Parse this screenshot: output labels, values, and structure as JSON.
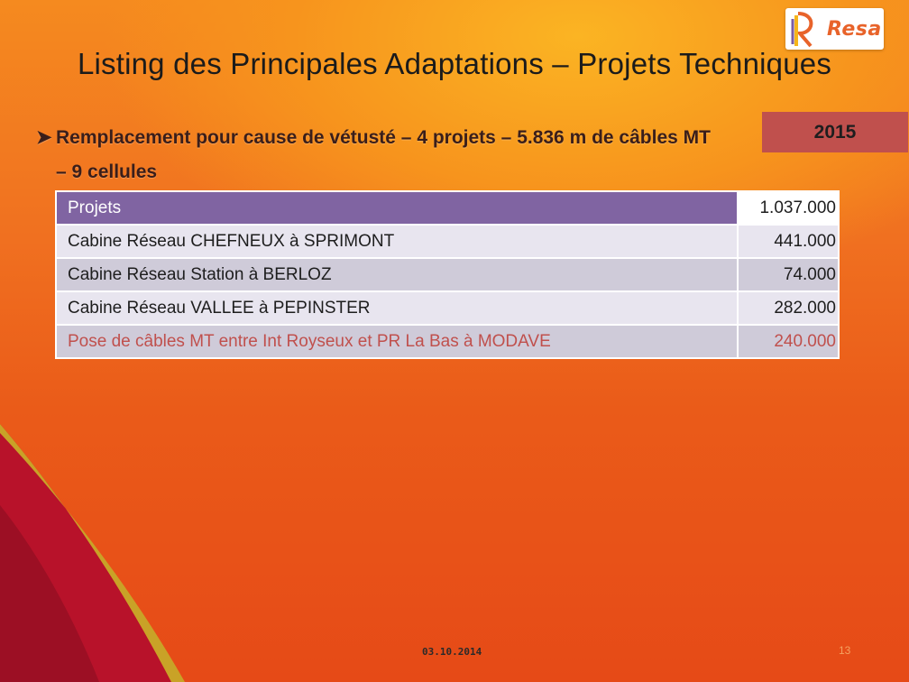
{
  "logo": {
    "text": "Resa"
  },
  "title": "Listing des Principales Adaptations – Projets Techniques",
  "bullet": {
    "line1": "Remplacement pour cause de vétusté – 4 projets – 5.836 m de câbles MT",
    "line2": "– 9 cellules"
  },
  "year_badge": "2015",
  "table": {
    "header": {
      "label": "Projets",
      "amount": "1.037.000"
    },
    "rows": [
      {
        "label": "Cabine Réseau CHEFNEUX à SPRIMONT",
        "amount": "441.000"
      },
      {
        "label": "Cabine Réseau Station à BERLOZ",
        "amount": "74.000"
      },
      {
        "label": "Cabine Réseau VALLEE à PEPINSTER",
        "amount": "282.000"
      },
      {
        "label": "Pose de câbles MT entre Int Royseux et PR La Bas à MODAVE",
        "amount": "240.000"
      }
    ]
  },
  "footer": {
    "date": "03.10.2014",
    "page": "13"
  },
  "colors": {
    "header_purple": "#8064a2",
    "year_red": "#c0504d",
    "highlight_red": "#c0504d",
    "row_light": "#e8e5ef",
    "row_dark": "#cfcbd9"
  }
}
